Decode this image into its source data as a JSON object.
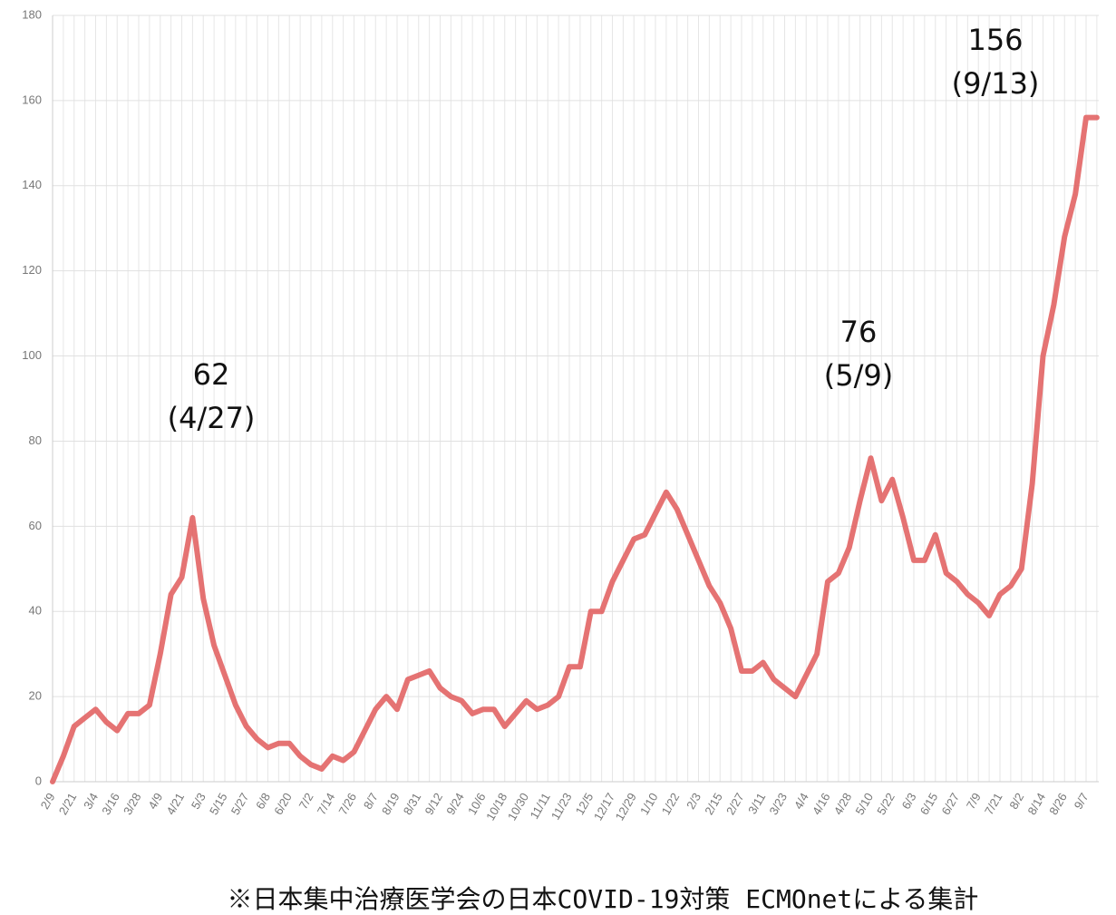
{
  "chart_data": {
    "type": "line",
    "color": "#e05a5a",
    "grid": true,
    "ylim": [
      0,
      180
    ],
    "yticks": [
      0,
      20,
      40,
      60,
      80,
      100,
      120,
      140,
      160,
      180
    ],
    "categories": [
      "2/9",
      null,
      "2/21",
      null,
      "3/4",
      null,
      "3/16",
      null,
      "3/28",
      null,
      "4/9",
      null,
      "4/21",
      null,
      "5/3",
      null,
      "5/15",
      null,
      "5/27",
      null,
      "6/8",
      null,
      "6/20",
      null,
      "7/2",
      null,
      "7/14",
      null,
      "7/26",
      null,
      "8/7",
      null,
      "8/19",
      null,
      "8/31",
      null,
      "9/12",
      null,
      "9/24",
      null,
      "10/6",
      null,
      "10/18",
      null,
      "10/30",
      null,
      "11/11",
      null,
      "11/23",
      null,
      "12/5",
      null,
      "12/17",
      null,
      "12/29",
      null,
      "1/10",
      null,
      "1/22",
      null,
      "2/3",
      null,
      "2/15",
      null,
      "2/27",
      null,
      "3/11",
      null,
      "3/23",
      null,
      "4/4",
      null,
      "4/16",
      null,
      "4/28",
      null,
      "5/10",
      null,
      "5/22",
      null,
      "6/3",
      null,
      "6/15",
      null,
      "6/27",
      null,
      "7/9",
      null,
      "7/21",
      null,
      "8/2",
      null,
      "8/14",
      null,
      "8/26",
      null,
      "9/7",
      null
    ],
    "values": [
      0,
      6,
      13,
      15,
      17,
      14,
      12,
      16,
      16,
      18,
      30,
      44,
      48,
      62,
      43,
      32,
      25,
      18,
      13,
      10,
      8,
      9,
      9,
      6,
      4,
      3,
      6,
      5,
      7,
      12,
      17,
      20,
      17,
      24,
      25,
      26,
      22,
      20,
      19,
      16,
      17,
      17,
      13,
      16,
      19,
      17,
      18,
      20,
      27,
      27,
      40,
      40,
      47,
      52,
      57,
      58,
      63,
      68,
      64,
      58,
      52,
      46,
      42,
      36,
      26,
      26,
      28,
      24,
      22,
      20,
      25,
      30,
      47,
      49,
      55,
      66,
      76,
      66,
      71,
      62,
      52,
      52,
      58,
      49,
      47,
      44,
      42,
      39,
      44,
      46,
      50,
      70,
      100,
      112,
      128,
      138,
      156,
      156
    ],
    "annotations": [
      {
        "lines": [
          "62",
          "(4/27)"
        ]
      },
      {
        "lines": [
          "76",
          "(5/9)"
        ]
      },
      {
        "lines": [
          "156",
          "(9/13)"
        ]
      }
    ],
    "footnote": "※日本集中治療医学会の日本COVID-19対策 ECMOnetによる集計"
  }
}
